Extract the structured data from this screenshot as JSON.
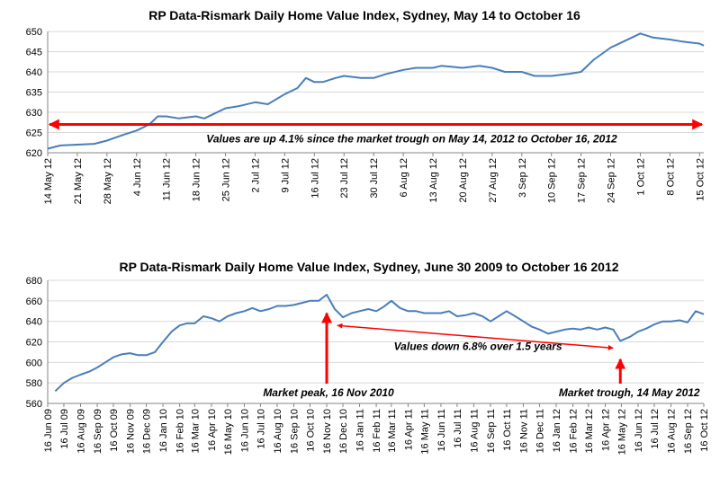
{
  "colors": {
    "series": "#4a7ebb",
    "annotation": "#ff0000",
    "grid": "#d9d9d9",
    "axis": "#868686"
  },
  "chart_data": [
    {
      "type": "line",
      "title": "RP Data-Rismark Daily Home Value Index, Sydney, May 14 to October 16",
      "xlabel": "",
      "ylabel": "",
      "ylim": [
        620,
        650
      ],
      "yticks": [
        620,
        625,
        630,
        635,
        640,
        645,
        650
      ],
      "grid": true,
      "x_range": [
        "2012-05-14",
        "2012-10-16"
      ],
      "xtick_dates": [
        "2012-05-14",
        "2012-05-21",
        "2012-05-28",
        "2012-06-04",
        "2012-06-11",
        "2012-06-18",
        "2012-06-25",
        "2012-07-02",
        "2012-07-09",
        "2012-07-16",
        "2012-07-23",
        "2012-07-30",
        "2012-08-06",
        "2012-08-13",
        "2012-08-20",
        "2012-08-27",
        "2012-09-03",
        "2012-09-10",
        "2012-09-17",
        "2012-09-24",
        "2012-10-01",
        "2012-10-08",
        "2012-10-15"
      ],
      "xtick_labels": [
        "14 May 12",
        "21 May 12",
        "28 May 12",
        "4 Jun 12",
        "11 Jun 12",
        "18 Jun 12",
        "25 Jun 12",
        "2 Jul 12",
        "9 Jul 12",
        "16 Jul 12",
        "23 Jul 12",
        "30 Jul 12",
        "6 Aug 12",
        "13 Aug 12",
        "20 Aug 12",
        "27 Aug 12",
        "3 Sep 12",
        "10 Sep 12",
        "17 Sep 12",
        "24 Sep 12",
        "1 Oct 12",
        "8 Oct 12",
        "15 Oct 12"
      ],
      "series": [
        {
          "x": [
            "2012-05-14",
            "2012-05-17",
            "2012-05-21",
            "2012-05-25",
            "2012-05-28",
            "2012-06-01",
            "2012-06-04",
            "2012-06-07",
            "2012-06-09",
            "2012-06-11",
            "2012-06-14",
            "2012-06-18",
            "2012-06-20",
            "2012-06-22",
            "2012-06-25",
            "2012-06-28",
            "2012-07-02",
            "2012-07-05",
            "2012-07-09",
            "2012-07-12",
            "2012-07-14",
            "2012-07-16",
            "2012-07-18",
            "2012-07-21",
            "2012-07-23",
            "2012-07-27",
            "2012-07-30",
            "2012-08-02",
            "2012-08-06",
            "2012-08-09",
            "2012-08-13",
            "2012-08-15",
            "2012-08-20",
            "2012-08-24",
            "2012-08-27",
            "2012-08-30",
            "2012-09-03",
            "2012-09-06",
            "2012-09-10",
            "2012-09-14",
            "2012-09-17",
            "2012-09-20",
            "2012-09-24",
            "2012-09-27",
            "2012-10-01",
            "2012-10-04",
            "2012-10-08",
            "2012-10-11",
            "2012-10-15",
            "2012-10-16"
          ],
          "values": [
            621.0,
            621.8,
            622.0,
            622.2,
            623.0,
            624.5,
            625.5,
            627.0,
            629.0,
            629.0,
            628.5,
            629.0,
            628.5,
            629.5,
            631.0,
            631.5,
            632.5,
            632.0,
            634.5,
            636.0,
            638.5,
            637.5,
            637.5,
            638.5,
            639.0,
            638.5,
            638.5,
            639.5,
            640.5,
            641.0,
            641.0,
            641.5,
            641.0,
            641.5,
            641.0,
            640.0,
            640.0,
            639.0,
            639.0,
            639.5,
            640.0,
            643.0,
            646.0,
            647.5,
            649.5,
            648.5,
            648.0,
            647.5,
            647.0,
            646.5
          ]
        }
      ],
      "annotations": [
        {
          "type": "double-arrow",
          "from": "2012-05-14",
          "to": "2012-10-16",
          "y": 627,
          "color": "red",
          "text": "Values are up 4.1% since the market trough on May 14, 2012 to October 16, 2012"
        }
      ]
    },
    {
      "type": "line",
      "title": "RP Data-Rismark Daily Home Value Index, Sydney, June 30 2009 to October 16 2012",
      "xlabel": "",
      "ylabel": "",
      "ylim": [
        560,
        680
      ],
      "yticks": [
        560,
        580,
        600,
        620,
        640,
        660,
        680
      ],
      "grid": true,
      "x_range": [
        "2009-06-16",
        "2012-10-16"
      ],
      "xtick_dates": [
        "2009-06-16",
        "2009-07-16",
        "2009-08-16",
        "2009-09-16",
        "2009-10-16",
        "2009-11-16",
        "2009-12-16",
        "2010-01-16",
        "2010-02-16",
        "2010-03-16",
        "2010-04-16",
        "2010-05-16",
        "2010-06-16",
        "2010-07-16",
        "2010-08-16",
        "2010-09-16",
        "2010-10-16",
        "2010-11-16",
        "2010-12-16",
        "2011-01-16",
        "2011-02-16",
        "2011-03-16",
        "2011-04-16",
        "2011-05-16",
        "2011-06-16",
        "2011-07-16",
        "2011-08-16",
        "2011-09-16",
        "2011-10-16",
        "2011-11-16",
        "2011-12-16",
        "2012-01-16",
        "2012-02-16",
        "2012-03-16",
        "2012-04-16",
        "2012-05-16",
        "2012-06-16",
        "2012-07-16",
        "2012-08-16",
        "2012-09-16",
        "2012-10-16"
      ],
      "xtick_labels": [
        "16 Jun 09",
        "16 Jul 09",
        "16 Aug 09",
        "16 Sep 09",
        "16 Oct 09",
        "16 Nov 09",
        "16 Dec 09",
        "16 Jan 10",
        "16 Feb 10",
        "16 Mar 10",
        "16 Apr 10",
        "16 May 10",
        "16 Jun 10",
        "16 Jul 10",
        "16 Aug 10",
        "16 Sep 10",
        "16 Oct 10",
        "16 Nov 10",
        "16 Dec 10",
        "16 Jan 11",
        "16 Feb 11",
        "16 Mar 11",
        "16 Apr 11",
        "16 May 11",
        "16 Jun 11",
        "16 Jul 11",
        "16 Aug 11",
        "16 Sep 11",
        "16 Oct 11",
        "16 Nov 11",
        "16 Dec 11",
        "16 Jan 12",
        "16 Feb 12",
        "16 Mar 12",
        "16 Apr 12",
        "16 May 12",
        "16 Jun 12",
        "16 Jul 12",
        "16 Aug 12",
        "16 Sep 12",
        "16 Oct 12"
      ],
      "series": [
        {
          "x": [
            "2009-06-30",
            "2009-07-16",
            "2009-08-01",
            "2009-08-16",
            "2009-09-01",
            "2009-09-16",
            "2009-10-01",
            "2009-10-16",
            "2009-11-01",
            "2009-11-16",
            "2009-12-01",
            "2009-12-16",
            "2010-01-01",
            "2010-01-16",
            "2010-02-01",
            "2010-02-16",
            "2010-03-01",
            "2010-03-16",
            "2010-04-01",
            "2010-04-16",
            "2010-05-01",
            "2010-05-16",
            "2010-06-01",
            "2010-06-16",
            "2010-07-01",
            "2010-07-16",
            "2010-08-01",
            "2010-08-16",
            "2010-09-01",
            "2010-09-16",
            "2010-10-01",
            "2010-10-16",
            "2010-11-01",
            "2010-11-16",
            "2010-12-01",
            "2010-12-16",
            "2011-01-01",
            "2011-01-16",
            "2011-02-01",
            "2011-02-16",
            "2011-03-01",
            "2011-03-16",
            "2011-04-01",
            "2011-04-16",
            "2011-05-01",
            "2011-05-16",
            "2011-06-01",
            "2011-06-16",
            "2011-07-01",
            "2011-07-16",
            "2011-08-01",
            "2011-08-16",
            "2011-09-01",
            "2011-09-16",
            "2011-10-01",
            "2011-10-16",
            "2011-11-01",
            "2011-11-16",
            "2011-12-01",
            "2011-12-16",
            "2012-01-01",
            "2012-01-16",
            "2012-02-01",
            "2012-02-16",
            "2012-03-01",
            "2012-03-16",
            "2012-04-01",
            "2012-04-16",
            "2012-05-01",
            "2012-05-14",
            "2012-06-01",
            "2012-06-16",
            "2012-07-01",
            "2012-07-16",
            "2012-08-01",
            "2012-08-16",
            "2012-09-01",
            "2012-09-16",
            "2012-10-01",
            "2012-10-16"
          ],
          "values": [
            572,
            580,
            585,
            588,
            591,
            595,
            600,
            605,
            608,
            609,
            607,
            607,
            610,
            620,
            630,
            636,
            638,
            638,
            645,
            643,
            640,
            645,
            648,
            650,
            653,
            650,
            652,
            655,
            655,
            656,
            658,
            660,
            660,
            666,
            652,
            644,
            648,
            650,
            652,
            650,
            654,
            660,
            653,
            650,
            650,
            648,
            648,
            648,
            650,
            645,
            646,
            648,
            645,
            640,
            645,
            650,
            645,
            640,
            635,
            632,
            628,
            630,
            632,
            633,
            632,
            634,
            632,
            634,
            632,
            621,
            625,
            630,
            633,
            637,
            640,
            640,
            641,
            639,
            650,
            647
          ]
        }
      ],
      "annotations": [
        {
          "type": "arrow-up",
          "date": "2010-11-16",
          "text": "Market peak, 16 Nov 2010",
          "color": "red"
        },
        {
          "type": "arrow-up",
          "date": "2012-05-14",
          "text": "Market trough, 14 May 2012",
          "color": "red"
        },
        {
          "type": "double-arrow",
          "from": "2010-11-16",
          "to": "2012-05-14",
          "color": "red",
          "text": "Values down 6.8% over 1.5 years"
        }
      ]
    }
  ]
}
